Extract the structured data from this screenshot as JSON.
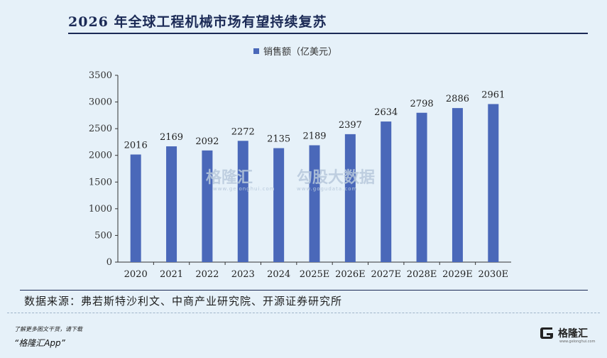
{
  "header": {
    "title": "2026 年全球工程机械市场有望持续复苏"
  },
  "footer": {
    "source": "数据来源：弗若斯特沙利文、中商产业研究院、开源证券研究所",
    "promo_line1": "了解更多图文干货，请下载",
    "promo_line2": "“格隆汇App”",
    "brand_name": "格隆汇",
    "brand_url": "www.gelonghui.com"
  },
  "watermark": {
    "left_text": "格隆汇",
    "left_url": "www.gelonghui.com",
    "right_text": "勾股大数据",
    "right_url": "www.gogudata.com"
  },
  "colors": {
    "bar": "#4a68b9",
    "title": "#1b2a56",
    "background": "#e6f1f9"
  },
  "chart_data": {
    "type": "bar",
    "title": "",
    "xlabel": "",
    "ylabel": "",
    "categories": [
      "2020",
      "2021",
      "2022",
      "2023",
      "2024",
      "2025E",
      "2026E",
      "2027E",
      "2028E",
      "2029E",
      "2030E"
    ],
    "series": [
      {
        "name": "销售额（亿美元）",
        "values": [
          2016,
          2169,
          2092,
          2272,
          2135,
          2189,
          2397,
          2634,
          2798,
          2886,
          2961
        ]
      }
    ],
    "ylim": [
      0,
      3500
    ],
    "yticks": [
      0,
      500,
      1000,
      1500,
      2000,
      2500,
      3000,
      3500
    ],
    "grid": false,
    "legend_position": "top-center"
  }
}
